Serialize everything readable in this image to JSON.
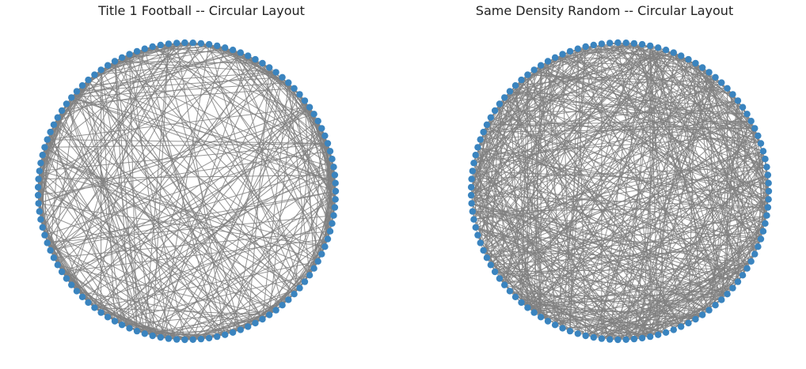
{
  "graphs": [
    {
      "title": "Title 1 Football -- Circular Layout",
      "nodes": 115,
      "edges": 613,
      "structure": "clustered",
      "seed": 7
    },
    {
      "title": "Same Density Random -- Circular Layout",
      "nodes": 115,
      "edges": 613,
      "structure": "random",
      "seed": 13
    }
  ],
  "style": {
    "node_color": "#3a84bf",
    "edge_color": "#808080",
    "background": "#ffffff"
  }
}
